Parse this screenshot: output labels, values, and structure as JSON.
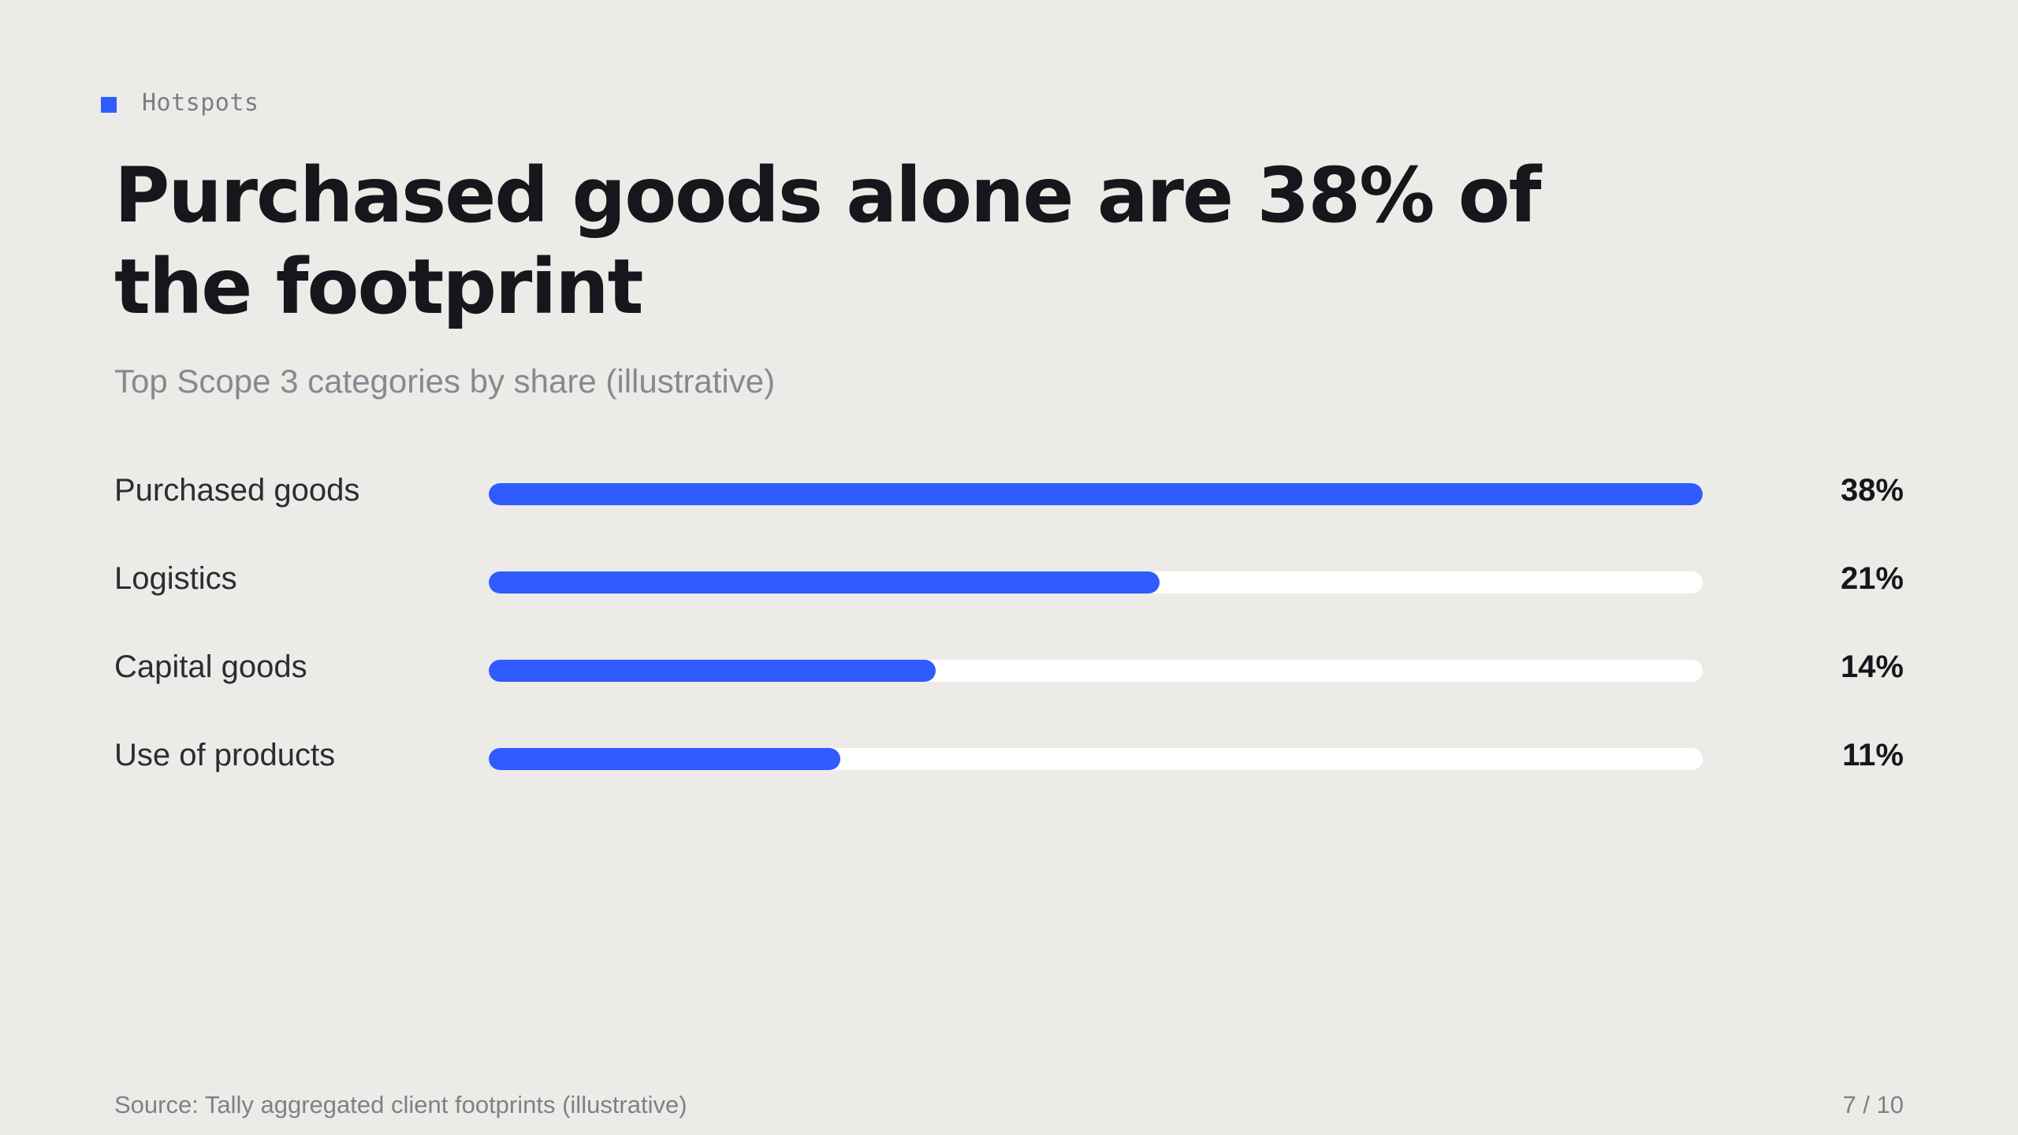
{
  "eyebrow": {
    "label": "Hotspots",
    "marker_color": "#2f5bff"
  },
  "title": "Purchased goods alone are 38% of the footprint",
  "subtitle": "Top Scope 3 categories by share (illustrative)",
  "colors": {
    "accent": "#2f5bff",
    "track": "#ffffff",
    "background": "#ecebe7"
  },
  "chart_data": {
    "type": "bar",
    "orientation": "horizontal",
    "categories": [
      "Purchased goods",
      "Logistics",
      "Capital goods",
      "Use of products"
    ],
    "values": [
      38,
      21,
      14,
      11
    ],
    "value_labels": [
      "38%",
      "21%",
      "14%",
      "11%"
    ],
    "unit": "%",
    "xlim": [
      0,
      38
    ],
    "grid": false,
    "legend": "none"
  },
  "footer": {
    "source": "Source: Tally aggregated client footprints (illustrative)",
    "page": "7 / 10"
  }
}
